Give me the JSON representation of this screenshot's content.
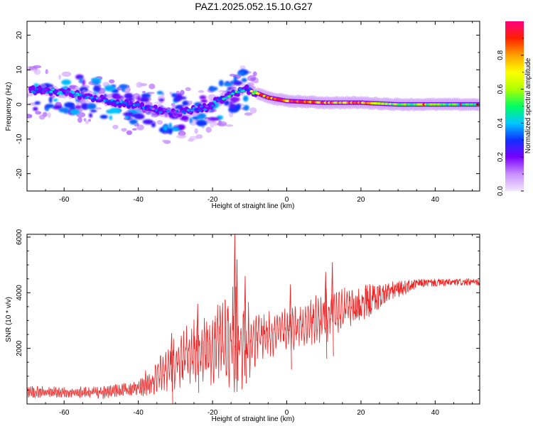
{
  "title": "PAZ1.2025.052.15.10.G27",
  "chart_data": [
    {
      "type": "heatmap",
      "name": "spectrogram",
      "xlabel": "Height of straight line (km)",
      "ylabel": "Frequency (Hz)",
      "colorbar_label": "Normalized spectral amplitude",
      "xlim": [
        -70,
        52
      ],
      "ylim": [
        -25,
        24
      ],
      "x_ticks": [
        -60,
        -40,
        -20,
        0,
        20,
        40
      ],
      "y_ticks": [
        -20,
        -10,
        0,
        10,
        20
      ],
      "colorbar_ticks": [
        0.0,
        0.2,
        0.4,
        0.6,
        0.8
      ],
      "colormap": [
        "#f2e6ff",
        "#c890ff",
        "#7a00ff",
        "#1030ff",
        "#00c8ff",
        "#00ff60",
        "#b0ff00",
        "#ffff00",
        "#ffa000",
        "#ff2000",
        "#ff0080"
      ],
      "signal_center_hz": [
        {
          "x": -66,
          "y": 4
        },
        {
          "x": -60,
          "y": 3.5
        },
        {
          "x": -52,
          "y": 2
        },
        {
          "x": -45,
          "y": 0.5
        },
        {
          "x": -38,
          "y": -1
        },
        {
          "x": -30,
          "y": -2.5
        },
        {
          "x": -22,
          "y": -1
        },
        {
          "x": -16,
          "y": 2.5
        },
        {
          "x": -11,
          "y": 4.5
        },
        {
          "x": -5,
          "y": 2
        },
        {
          "x": 0,
          "y": 1
        },
        {
          "x": 10,
          "y": 0.5
        },
        {
          "x": 20,
          "y": 0.5
        },
        {
          "x": 30,
          "y": 0
        },
        {
          "x": 40,
          "y": 0
        },
        {
          "x": 52,
          "y": 0
        }
      ],
      "ridge_amplitude": [
        {
          "x": -66,
          "a": 0.35
        },
        {
          "x": -50,
          "a": 0.3
        },
        {
          "x": -30,
          "a": 0.25
        },
        {
          "x": -20,
          "a": 0.3
        },
        {
          "x": -12,
          "a": 0.45
        },
        {
          "x": -4,
          "a": 0.8
        },
        {
          "x": 5,
          "a": 0.85
        },
        {
          "x": 12,
          "a": 0.7
        },
        {
          "x": 20,
          "a": 0.8
        },
        {
          "x": 30,
          "a": 0.55
        },
        {
          "x": 52,
          "a": 0.45
        }
      ]
    },
    {
      "type": "line",
      "name": "snr",
      "xlabel": "Height of straight line (km)",
      "ylabel": "SNR (10 * v/v)",
      "xlim": [
        -70,
        52
      ],
      "ylim": [
        0,
        6100
      ],
      "x_ticks": [
        -60,
        -40,
        -20,
        0,
        20,
        40
      ],
      "y_ticks": [
        2000,
        4000,
        6000
      ],
      "color": "#ee2222",
      "envelope": [
        {
          "x": -70,
          "mean": 450,
          "amp": 250
        },
        {
          "x": -60,
          "mean": 400,
          "amp": 230
        },
        {
          "x": -50,
          "mean": 420,
          "amp": 250
        },
        {
          "x": -42,
          "mean": 500,
          "amp": 300
        },
        {
          "x": -36,
          "mean": 850,
          "amp": 600
        },
        {
          "x": -31,
          "mean": 1400,
          "amp": 1000
        },
        {
          "x": -26,
          "mean": 1800,
          "amp": 1300
        },
        {
          "x": -20,
          "mean": 2100,
          "amp": 1500
        },
        {
          "x": -14,
          "mean": 2400,
          "amp": 2200
        },
        {
          "x": -12,
          "mean": 2200,
          "amp": 1800
        },
        {
          "x": -8,
          "mean": 2400,
          "amp": 1000
        },
        {
          "x": 0,
          "mean": 2700,
          "amp": 800
        },
        {
          "x": 8,
          "mean": 3000,
          "amp": 1000
        },
        {
          "x": 14,
          "mean": 3300,
          "amp": 1100
        },
        {
          "x": 20,
          "mean": 3600,
          "amp": 700
        },
        {
          "x": 28,
          "mean": 4050,
          "amp": 350
        },
        {
          "x": 36,
          "mean": 4350,
          "amp": 150
        },
        {
          "x": 52,
          "mean": 4380,
          "amp": 120
        }
      ],
      "peaks": [
        {
          "x": -14,
          "y": 6100
        },
        {
          "x": -13.4,
          "y": 5200
        },
        {
          "x": -11.2,
          "y": 4600
        },
        {
          "x": 12.3,
          "y": 5100
        },
        {
          "x": 10.5,
          "y": 4750
        },
        {
          "x": 1,
          "y": 4300
        },
        {
          "x": -31,
          "y": 2550
        },
        {
          "x": -24,
          "y": 3600
        }
      ]
    }
  ]
}
